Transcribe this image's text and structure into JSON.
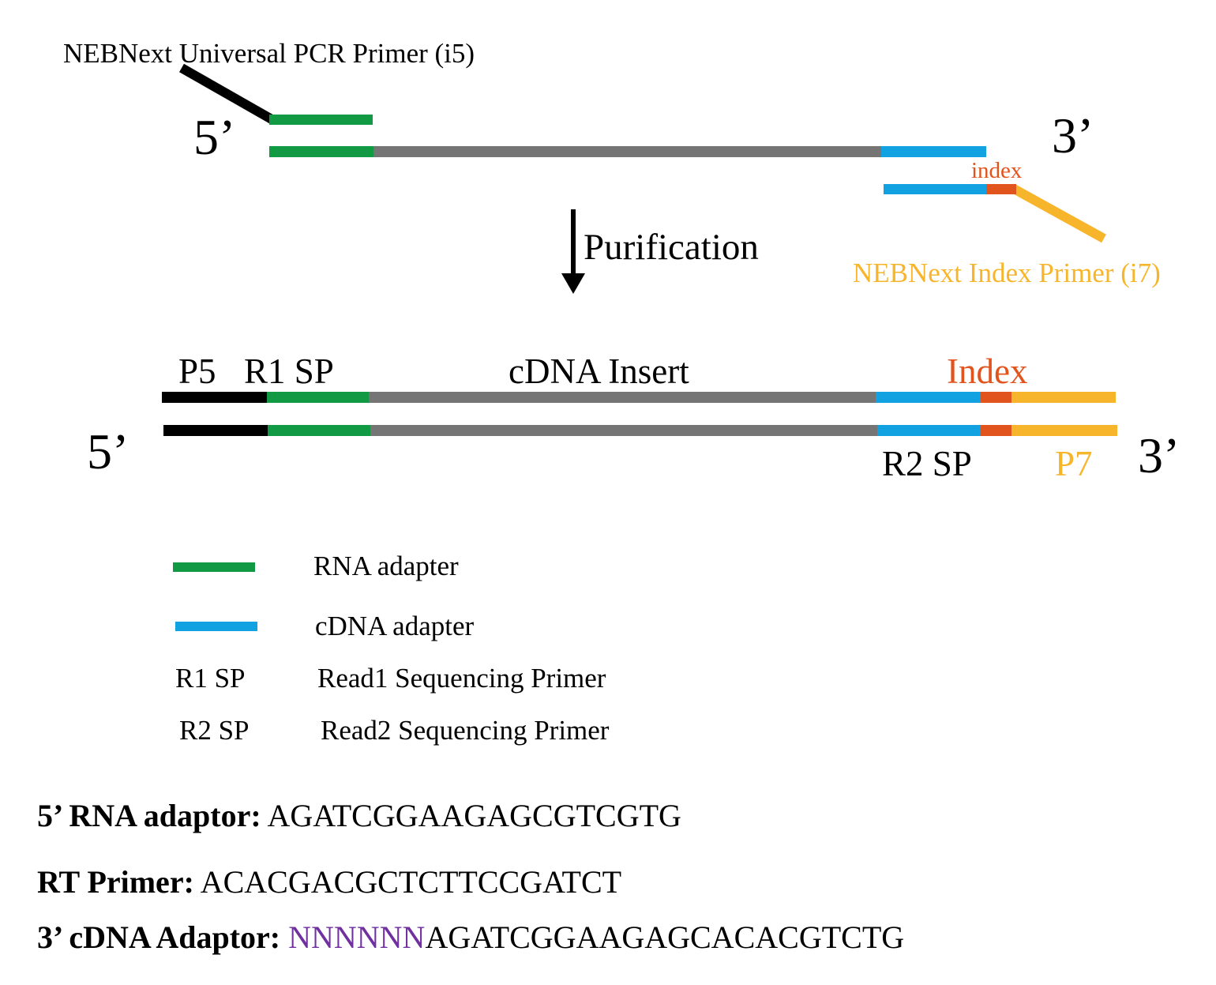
{
  "colors": {
    "green": "#119944",
    "gray": "#757575",
    "blue": "#12a2e2",
    "orange": "#e2541d",
    "yellow": "#f7b52b",
    "black": "#000000",
    "purple": "#7030a0"
  },
  "top_diagram": {
    "i5_label": "NEBNext Universal PCR Primer (i5)",
    "i7_label": "NEBNext Index Primer (i7)",
    "index_label": "index",
    "five_prime": "5’",
    "three_prime": "3’"
  },
  "purification_label": "Purification",
  "library": {
    "p5_label": "P5",
    "r1sp_label": "R1 SP",
    "insert_label": "cDNA Insert",
    "index_label": "Index",
    "r2sp_label": "R2 SP",
    "p7_label": "P7",
    "five_prime": "5’",
    "three_prime": "3’"
  },
  "legend": [
    {
      "key": "",
      "swatch": "green",
      "text": "RNA adapter"
    },
    {
      "key": "",
      "swatch": "blue",
      "text": "cDNA adapter"
    },
    {
      "key": "R1 SP",
      "swatch": "",
      "text": "Read1 Sequencing Primer"
    },
    {
      "key": "R2 SP",
      "swatch": "",
      "text": "Read2 Sequencing Primer"
    }
  ],
  "sequences": {
    "rna_adaptor_label": "5’ RNA adaptor:",
    "rna_adaptor_seq": "AGATCGGAAGAGCGTCGTG",
    "rt_primer_label": "RT Primer:",
    "rt_primer_seq": "ACACGACGCTCTTCCGATCT",
    "cdna_adaptor_label": "3’ cDNA Adaptor:",
    "cdna_adaptor_umi": "NNNNNN",
    "cdna_adaptor_seq": "AGATCGGAAGAGCACACGTCTG"
  }
}
